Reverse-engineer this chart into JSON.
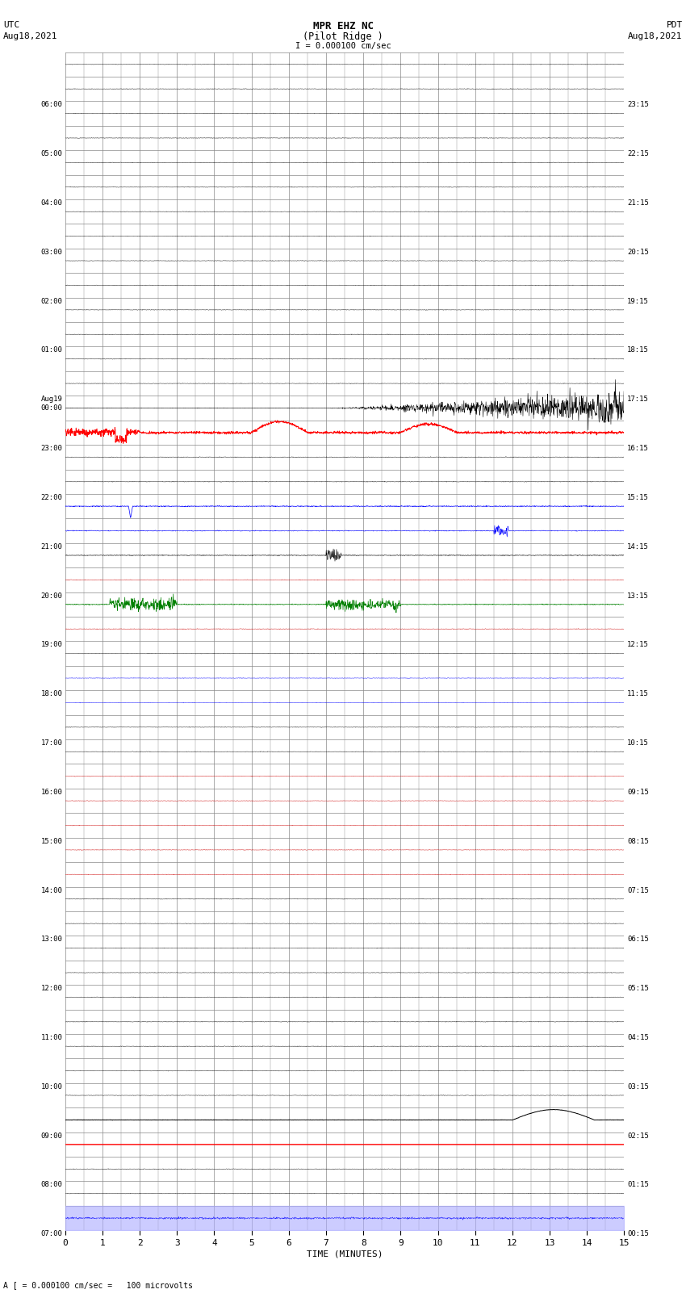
{
  "title_line1": "MPR EHZ NC",
  "title_line2": "(Pilot Ridge )",
  "title_scale": "I = 0.000100 cm/sec",
  "left_label_line1": "UTC",
  "left_label_line2": "Aug18,2021",
  "right_label_line1": "PDT",
  "right_label_line2": "Aug18,2021",
  "bottom_label": "A [ = 0.000100 cm/sec =   100 microvolts",
  "xlabel": "TIME (MINUTES)",
  "utc_times": [
    "07:00",
    "",
    "08:00",
    "",
    "09:00",
    "",
    "10:00",
    "",
    "11:00",
    "",
    "12:00",
    "",
    "13:00",
    "",
    "14:00",
    "",
    "15:00",
    "",
    "16:00",
    "",
    "17:00",
    "",
    "18:00",
    "",
    "19:00",
    "",
    "20:00",
    "",
    "21:00",
    "",
    "22:00",
    "",
    "23:00",
    "",
    "Aug19\n00:00",
    "",
    "01:00",
    "",
    "02:00",
    "",
    "03:00",
    "",
    "04:00",
    "",
    "05:00",
    "",
    "06:00",
    ""
  ],
  "pdt_times": [
    "00:15",
    "",
    "01:15",
    "",
    "02:15",
    "",
    "03:15",
    "",
    "04:15",
    "",
    "05:15",
    "",
    "06:15",
    "",
    "07:15",
    "",
    "08:15",
    "",
    "09:15",
    "",
    "10:15",
    "",
    "11:15",
    "",
    "12:15",
    "",
    "13:15",
    "",
    "14:15",
    "",
    "15:15",
    "",
    "16:15",
    "",
    "17:15",
    "",
    "18:15",
    "",
    "19:15",
    "",
    "20:15",
    "",
    "21:15",
    "",
    "22:15",
    "",
    "23:15",
    ""
  ],
  "n_rows": 48,
  "n_minutes": 15,
  "bg_color": "#ffffff",
  "grid_color": "#888888",
  "trace_color_default": "#000000",
  "red_color": "#ff0000",
  "blue_color": "#0000ff",
  "green_color": "#008000",
  "dark_red_color": "#cc0000",
  "bottom_bar_color": "#aaaaff",
  "fig_width": 8.5,
  "fig_height": 16.13,
  "dpi": 100
}
